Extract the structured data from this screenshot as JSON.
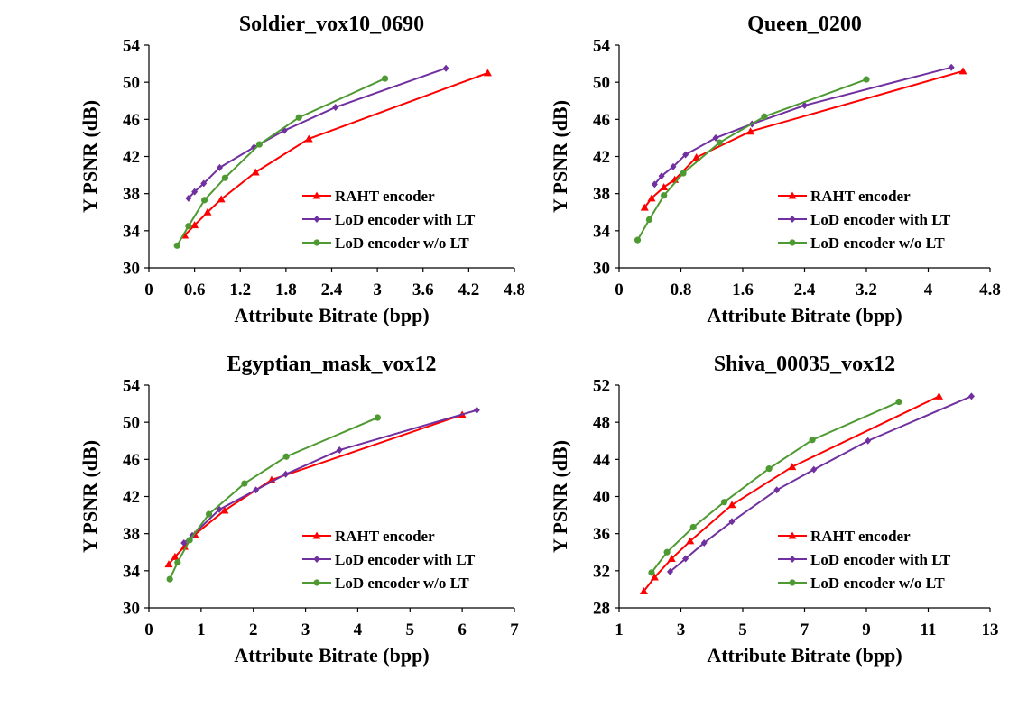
{
  "colors": {
    "raht": "#ff0000",
    "lod_lt": "#7030a0",
    "lod_nolt": "#4e9a32",
    "axis": "#000000"
  },
  "chart_data": [
    {
      "type": "line",
      "title": "Soldier_vox10_0690",
      "xlabel": "Attribute Bitrate (bpp)",
      "ylabel": "Y PSNR (dB)",
      "xlim": [
        0,
        4.8
      ],
      "ylim": [
        30,
        54
      ],
      "xticks": [
        "0",
        "0.6",
        "1.2",
        "1.8",
        "2.4",
        "3",
        "3.6",
        "4.2",
        "4.8"
      ],
      "yticks": [
        "30",
        "34",
        "38",
        "42",
        "46",
        "50",
        "54"
      ],
      "legend_position": "bottom-right",
      "series": [
        {
          "name": "RAHT encoder",
          "marker": "triangle",
          "x": [
            0.47,
            0.6,
            0.77,
            0.95,
            1.4,
            2.1,
            4.45
          ],
          "y": [
            33.5,
            34.6,
            36.0,
            37.4,
            40.3,
            43.9,
            51.0
          ]
        },
        {
          "name": "LoD encoder with LT",
          "marker": "diamond",
          "x": [
            0.52,
            0.6,
            0.72,
            0.93,
            1.38,
            1.78,
            2.45,
            3.9
          ],
          "y": [
            37.5,
            38.2,
            39.1,
            40.8,
            43.0,
            44.8,
            47.3,
            51.5
          ]
        },
        {
          "name": "LoD encoder w/o LT",
          "marker": "circle",
          "x": [
            0.37,
            0.52,
            0.73,
            1.0,
            1.45,
            1.97,
            3.1
          ],
          "y": [
            32.4,
            34.5,
            37.3,
            39.7,
            43.3,
            46.2,
            50.4
          ]
        }
      ]
    },
    {
      "type": "line",
      "title": "Queen_0200",
      "xlabel": "Attribute Bitrate (bpp)",
      "ylabel": "Y PSNR (dB)",
      "xlim": [
        0,
        4.8
      ],
      "ylim": [
        30,
        54
      ],
      "xticks": [
        "0",
        "0.8",
        "1.6",
        "2.4",
        "3.2",
        "4",
        "4.8"
      ],
      "yticks": [
        "30",
        "34",
        "38",
        "42",
        "46",
        "50",
        "54"
      ],
      "legend_position": "bottom-right",
      "series": [
        {
          "name": "RAHT encoder",
          "marker": "triangle",
          "x": [
            0.33,
            0.42,
            0.58,
            0.72,
            1.0,
            1.7,
            4.45
          ],
          "y": [
            36.5,
            37.5,
            38.7,
            39.5,
            41.9,
            44.7,
            51.2
          ]
        },
        {
          "name": "LoD encoder with LT",
          "marker": "diamond",
          "x": [
            0.46,
            0.55,
            0.7,
            0.86,
            1.25,
            1.72,
            2.4,
            4.3
          ],
          "y": [
            39.0,
            39.9,
            40.9,
            42.2,
            44.0,
            45.5,
            47.5,
            51.6
          ]
        },
        {
          "name": "LoD encoder w/o LT",
          "marker": "circle",
          "x": [
            0.24,
            0.39,
            0.58,
            0.83,
            1.3,
            1.88,
            3.2
          ],
          "y": [
            33.0,
            35.2,
            37.8,
            40.2,
            43.5,
            46.3,
            50.3
          ]
        }
      ]
    },
    {
      "type": "line",
      "title": "Egyptian_mask_vox12",
      "xlabel": "Attribute Bitrate (bpp)",
      "ylabel": "Y PSNR (dB)",
      "xlim": [
        0,
        7
      ],
      "ylim": [
        30,
        54
      ],
      "xticks": [
        "0",
        "1",
        "2",
        "3",
        "4",
        "5",
        "6",
        "7"
      ],
      "yticks": [
        "30",
        "34",
        "38",
        "42",
        "46",
        "50",
        "54"
      ],
      "legend_position": "bottom-right",
      "series": [
        {
          "name": "RAHT encoder",
          "marker": "triangle",
          "x": [
            0.38,
            0.5,
            0.68,
            0.88,
            1.45,
            2.35,
            6.0
          ],
          "y": [
            34.7,
            35.5,
            36.6,
            37.9,
            40.5,
            43.8,
            50.8
          ]
        },
        {
          "name": "LoD encoder with LT",
          "marker": "diamond",
          "x": [
            0.67,
            0.83,
            1.35,
            2.05,
            2.62,
            3.65,
            6.28
          ],
          "y": [
            37.0,
            37.8,
            40.6,
            42.7,
            44.4,
            47.0,
            51.3
          ]
        },
        {
          "name": "LoD encoder w/o LT",
          "marker": "circle",
          "x": [
            0.4,
            0.55,
            0.78,
            1.15,
            1.83,
            2.63,
            4.38
          ],
          "y": [
            33.1,
            34.9,
            37.3,
            40.1,
            43.4,
            46.3,
            50.5
          ]
        }
      ]
    },
    {
      "type": "line",
      "title": "Shiva_00035_vox12",
      "xlabel": "Attribute Bitrate (bpp)",
      "ylabel": "Y PSNR (dB)",
      "xlim": [
        1,
        13
      ],
      "ylim": [
        28,
        52
      ],
      "xticks": [
        "1",
        "3",
        "5",
        "7",
        "9",
        "11",
        "13"
      ],
      "yticks": [
        "28",
        "32",
        "36",
        "40",
        "44",
        "48",
        "52"
      ],
      "legend_position": "bottom-right",
      "series": [
        {
          "name": "RAHT encoder",
          "marker": "triangle",
          "x": [
            1.8,
            2.15,
            2.7,
            3.3,
            4.65,
            6.6,
            11.35
          ],
          "y": [
            29.8,
            31.3,
            33.3,
            35.2,
            39.1,
            43.2,
            50.8
          ]
        },
        {
          "name": "LoD encoder with LT",
          "marker": "diamond",
          "x": [
            2.65,
            3.15,
            3.75,
            4.65,
            6.1,
            7.3,
            9.05,
            12.4
          ],
          "y": [
            31.9,
            33.3,
            35.0,
            37.3,
            40.7,
            42.9,
            46.0,
            50.8
          ]
        },
        {
          "name": "LoD encoder w/o LT",
          "marker": "circle",
          "x": [
            2.05,
            2.55,
            3.4,
            4.4,
            5.85,
            7.25,
            10.05
          ],
          "y": [
            31.8,
            34.0,
            36.7,
            39.4,
            43.0,
            46.1,
            50.2
          ]
        }
      ]
    }
  ]
}
